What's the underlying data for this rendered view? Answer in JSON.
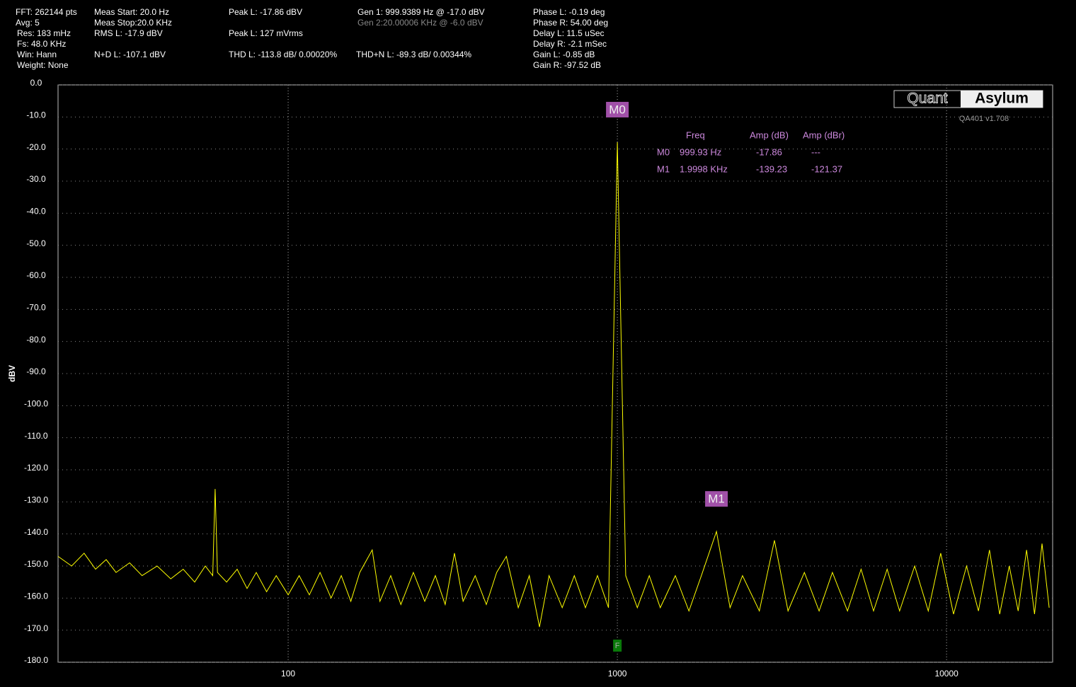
{
  "header": {
    "items": [
      "FFT: 262144 pts",
      "Avg: 5",
      "Res: 183 mHz",
      "Fs: 48.0 KHz",
      "Win: Hann",
      "Weight: None",
      "Meas Start: 20.0 Hz",
      "Meas Stop:20.0 KHz",
      "RMS L: -17.9 dBV",
      "N+D L: -107.1 dBV",
      "Peak L: -17.86 dBV",
      "Peak L: 127 mVrms",
      "THD L: -113.8 dB/ 0.00020%",
      "Gen 1: 999.9389 Hz @ -17.0  dBV",
      "Gen 2:20.00006 KHz @ -6.0  dBV",
      "THD+N L: -89.3 dB/ 0.00344%",
      "Phase L: -0.19 deg",
      "Phase R: 54.00 deg",
      "Delay L: 11.5 uSec",
      "Delay R: -2.1 mSec",
      "Gain L: -0.85 dB",
      "Gain R: -97.52 dB"
    ]
  },
  "logo": {
    "left": "Quant",
    "right": "Asylum",
    "version": "QA401 v1.708"
  },
  "marker_table": {
    "columns": [
      "Freq",
      "Amp (dB)",
      "Amp (dBr)"
    ],
    "rows": [
      [
        "M0",
        "999.93 Hz",
        "-17.86",
        "---"
      ],
      [
        "M1",
        "1.9998 KHz",
        "-139.23",
        "-121.37"
      ]
    ]
  },
  "chart_data": {
    "type": "line",
    "y_label": "dBV",
    "log_x": true,
    "grid": true,
    "color": "#ffff00",
    "xlim": [
      20,
      21000
    ],
    "ylim": [
      -180,
      0
    ],
    "xticks": [
      100,
      1000,
      10000
    ],
    "yticks": [
      {
        "value": 0,
        "label": "0.0"
      },
      {
        "value": -10,
        "label": "-10.0"
      },
      {
        "value": -20,
        "label": "-20.0"
      },
      {
        "value": -30,
        "label": "-30.0"
      },
      {
        "value": -40,
        "label": "-40.0"
      },
      {
        "value": -50,
        "label": "-50.0"
      },
      {
        "value": -60,
        "label": "-60.0"
      },
      {
        "value": -70,
        "label": "-70.0"
      },
      {
        "value": -80,
        "label": "-80.0"
      },
      {
        "value": -90,
        "label": "-90.0"
      },
      {
        "value": -100,
        "label": "-100.0"
      },
      {
        "value": -110,
        "label": "-110.0"
      },
      {
        "value": -120,
        "label": "-120.0"
      },
      {
        "value": -130,
        "label": "-130.0"
      },
      {
        "value": -140,
        "label": "-140.0"
      },
      {
        "value": -150,
        "label": "-150.0"
      },
      {
        "value": -160,
        "label": "-160.0"
      },
      {
        "value": -170,
        "label": "-170.0"
      },
      {
        "value": -180,
        "label": "-180.0"
      }
    ],
    "x": [
      20,
      22,
      24,
      26,
      28,
      30,
      33,
      36,
      40,
      44,
      48,
      52,
      56,
      59,
      60,
      61,
      65,
      70,
      75,
      80,
      86,
      92,
      100,
      108,
      116,
      125,
      135,
      145,
      155,
      165,
      180,
      190,
      205,
      220,
      240,
      260,
      280,
      300,
      320,
      340,
      370,
      400,
      430,
      460,
      500,
      540,
      580,
      620,
      680,
      740,
      800,
      870,
      940,
      1000,
      1060,
      1150,
      1250,
      1350,
      1500,
      1650,
      1800,
      2000,
      2200,
      2400,
      2700,
      3000,
      3300,
      3700,
      4100,
      4500,
      5000,
      5500,
      6000,
      6600,
      7200,
      8000,
      8800,
      9600,
      10500,
      11500,
      12500,
      13500,
      14500,
      15500,
      16500,
      17500,
      18500,
      19500,
      20500
    ],
    "values": [
      -147,
      -150,
      -146,
      -151,
      -148,
      -152,
      -149,
      -153,
      -150,
      -154,
      -151,
      -155,
      -150,
      -153,
      -126,
      -152,
      -155,
      -151,
      -157,
      -152,
      -158,
      -153,
      -159,
      -153,
      -159,
      -152,
      -160,
      -153,
      -161,
      -152,
      -145,
      -161,
      -153,
      -162,
      -152,
      -161,
      -153,
      -162,
      -146,
      -161,
      -153,
      -162,
      -152,
      -147,
      -163,
      -153,
      -169,
      -153,
      -163,
      -153,
      -163,
      -153,
      -163,
      -17.86,
      -153,
      -163,
      -153,
      -163,
      -153,
      -164,
      -153,
      -139.23,
      -163,
      -153,
      -164,
      -142,
      -164,
      -152,
      -164,
      -152,
      -164,
      -151,
      -164,
      -151,
      -164,
      -150,
      -164,
      -146,
      -165,
      -150,
      -164,
      -145,
      -165,
      -150,
      -164,
      -145,
      -165,
      -143,
      -163
    ],
    "markers": [
      {
        "label": "M0",
        "x": 999.93,
        "y": -17.86
      },
      {
        "label": "M1",
        "x": 1999.8,
        "y": -139.23
      }
    ],
    "flag": {
      "label": "F",
      "x": 1000
    }
  }
}
